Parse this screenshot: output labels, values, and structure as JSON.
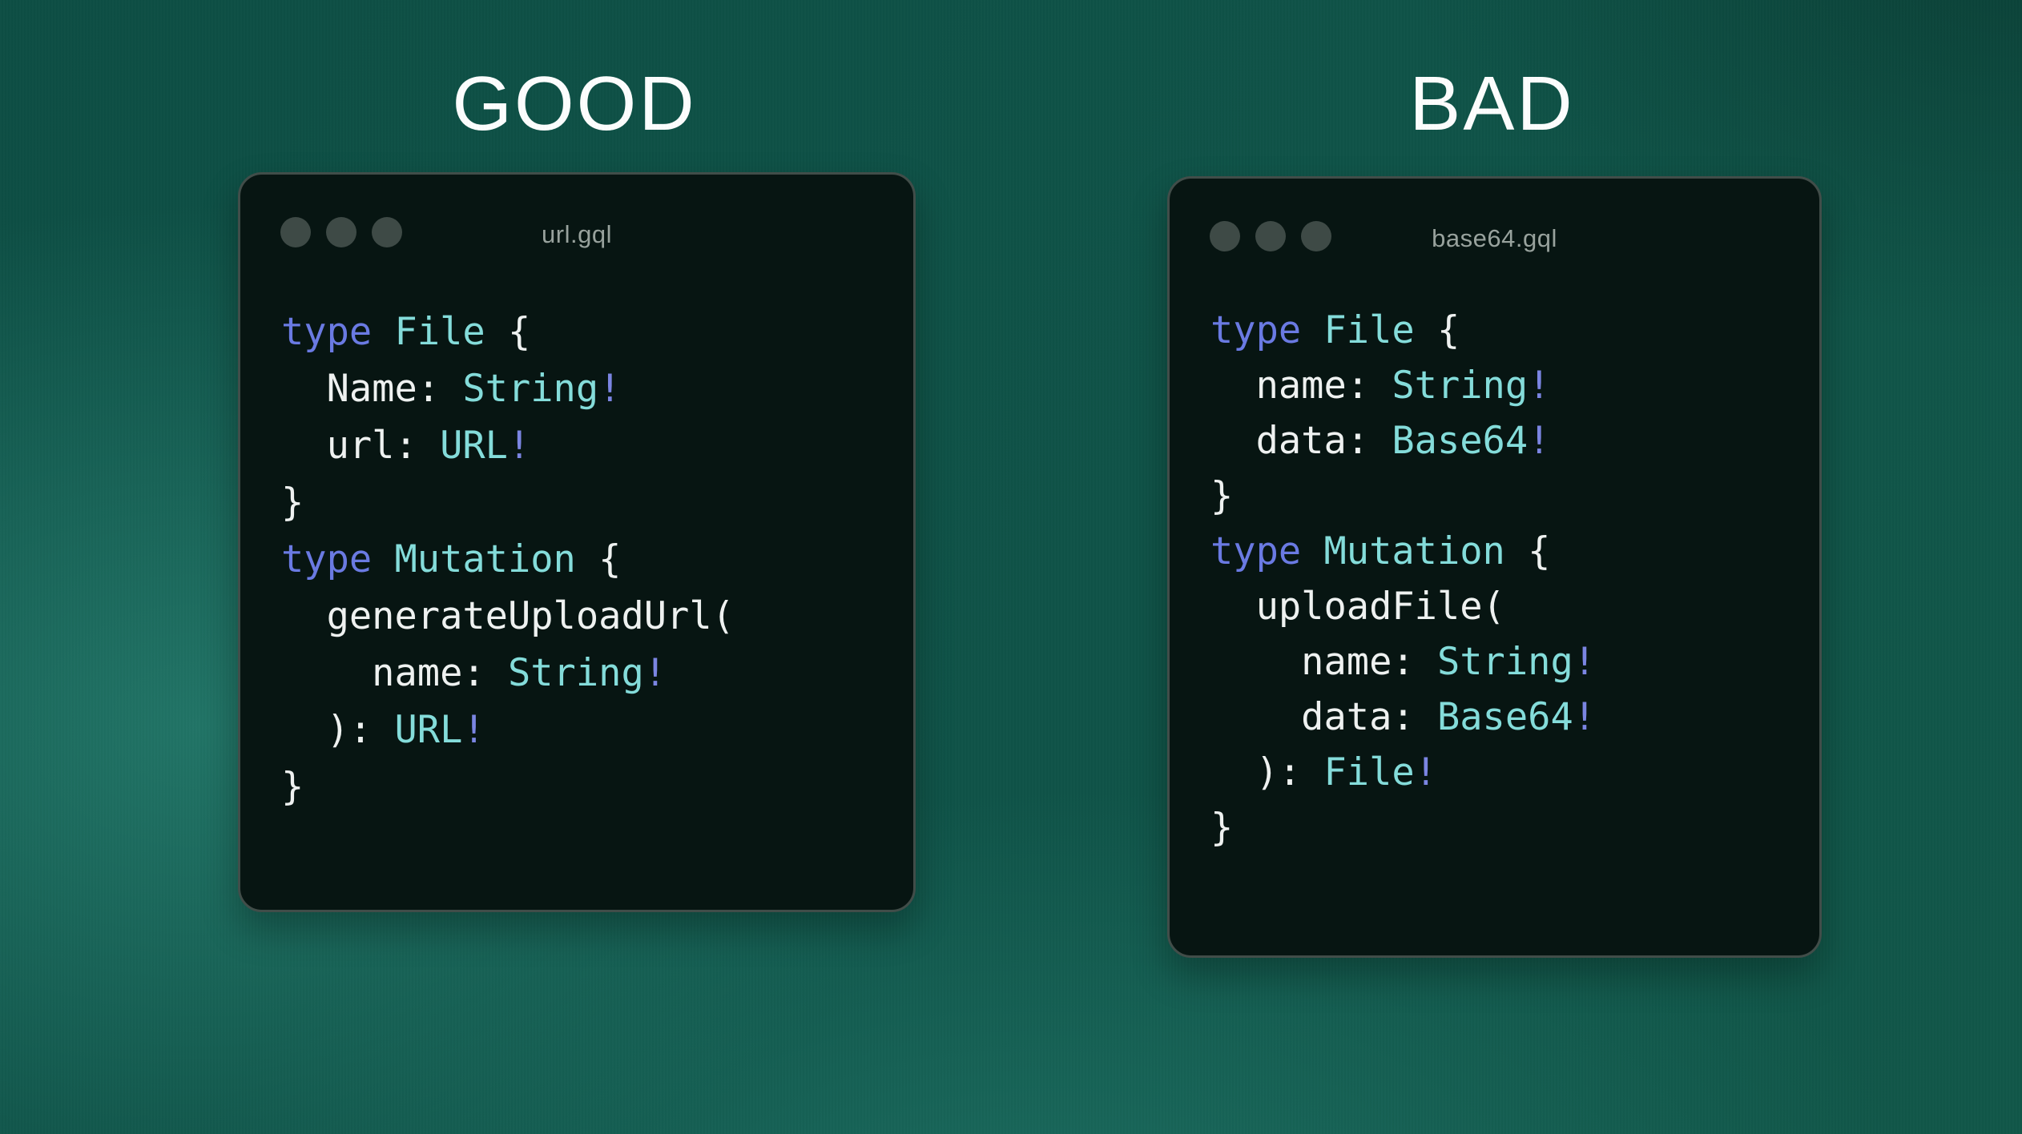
{
  "panels": [
    {
      "title": "GOOD",
      "filename": "url.gql",
      "lines": [
        [
          [
            "kw",
            "type"
          ],
          [
            "pl",
            " "
          ],
          [
            "ty",
            "File"
          ],
          [
            "pl",
            " {"
          ]
        ],
        [
          [
            "pl",
            "  Name: "
          ],
          [
            "ty",
            "String"
          ],
          [
            "bang",
            "!"
          ]
        ],
        [
          [
            "pl",
            "  url: "
          ],
          [
            "ty",
            "URL"
          ],
          [
            "bang",
            "!"
          ]
        ],
        [
          [
            "pl",
            "}"
          ]
        ],
        [
          [
            "kw",
            "type"
          ],
          [
            "pl",
            " "
          ],
          [
            "ty",
            "Mutation"
          ],
          [
            "pl",
            " {"
          ]
        ],
        [
          [
            "pl",
            "  generateUploadUrl("
          ]
        ],
        [
          [
            "pl",
            "    name: "
          ],
          [
            "ty",
            "String"
          ],
          [
            "bang",
            "!"
          ]
        ],
        [
          [
            "pl",
            "  ): "
          ],
          [
            "ty",
            "URL"
          ],
          [
            "bang",
            "!"
          ]
        ],
        [
          [
            "pl",
            "}"
          ]
        ]
      ]
    },
    {
      "title": "BAD",
      "filename": "base64.gql",
      "lines": [
        [
          [
            "kw",
            "type"
          ],
          [
            "pl",
            " "
          ],
          [
            "ty",
            "File"
          ],
          [
            "pl",
            " {"
          ]
        ],
        [
          [
            "pl",
            "  name: "
          ],
          [
            "ty",
            "String"
          ],
          [
            "bang",
            "!"
          ]
        ],
        [
          [
            "pl",
            "  data: "
          ],
          [
            "ty",
            "Base64"
          ],
          [
            "bang",
            "!"
          ]
        ],
        [
          [
            "pl",
            "}"
          ]
        ],
        [
          [
            "kw",
            "type"
          ],
          [
            "pl",
            " "
          ],
          [
            "ty",
            "Mutation"
          ],
          [
            "pl",
            " {"
          ]
        ],
        [
          [
            "pl",
            "  uploadFile("
          ]
        ],
        [
          [
            "pl",
            "    name: "
          ],
          [
            "ty",
            "String"
          ],
          [
            "bang",
            "!"
          ]
        ],
        [
          [
            "pl",
            "    data: "
          ],
          [
            "ty",
            "Base64"
          ],
          [
            "bang",
            "!"
          ]
        ],
        [
          [
            "pl",
            "  ): "
          ],
          [
            "ty",
            "File"
          ],
          [
            "bang",
            "!"
          ]
        ],
        [
          [
            "pl",
            "}"
          ]
        ]
      ]
    }
  ],
  "colors": {
    "title": "#fdfefe",
    "kw": "#6a7ae2",
    "ty": "#84dcda",
    "bang": "#7b85e2",
    "pl": "#eef1f0",
    "filename": "#98a29d",
    "dot": "#3e4a46",
    "window_bg": "#071512",
    "window_border": "#414d49"
  }
}
